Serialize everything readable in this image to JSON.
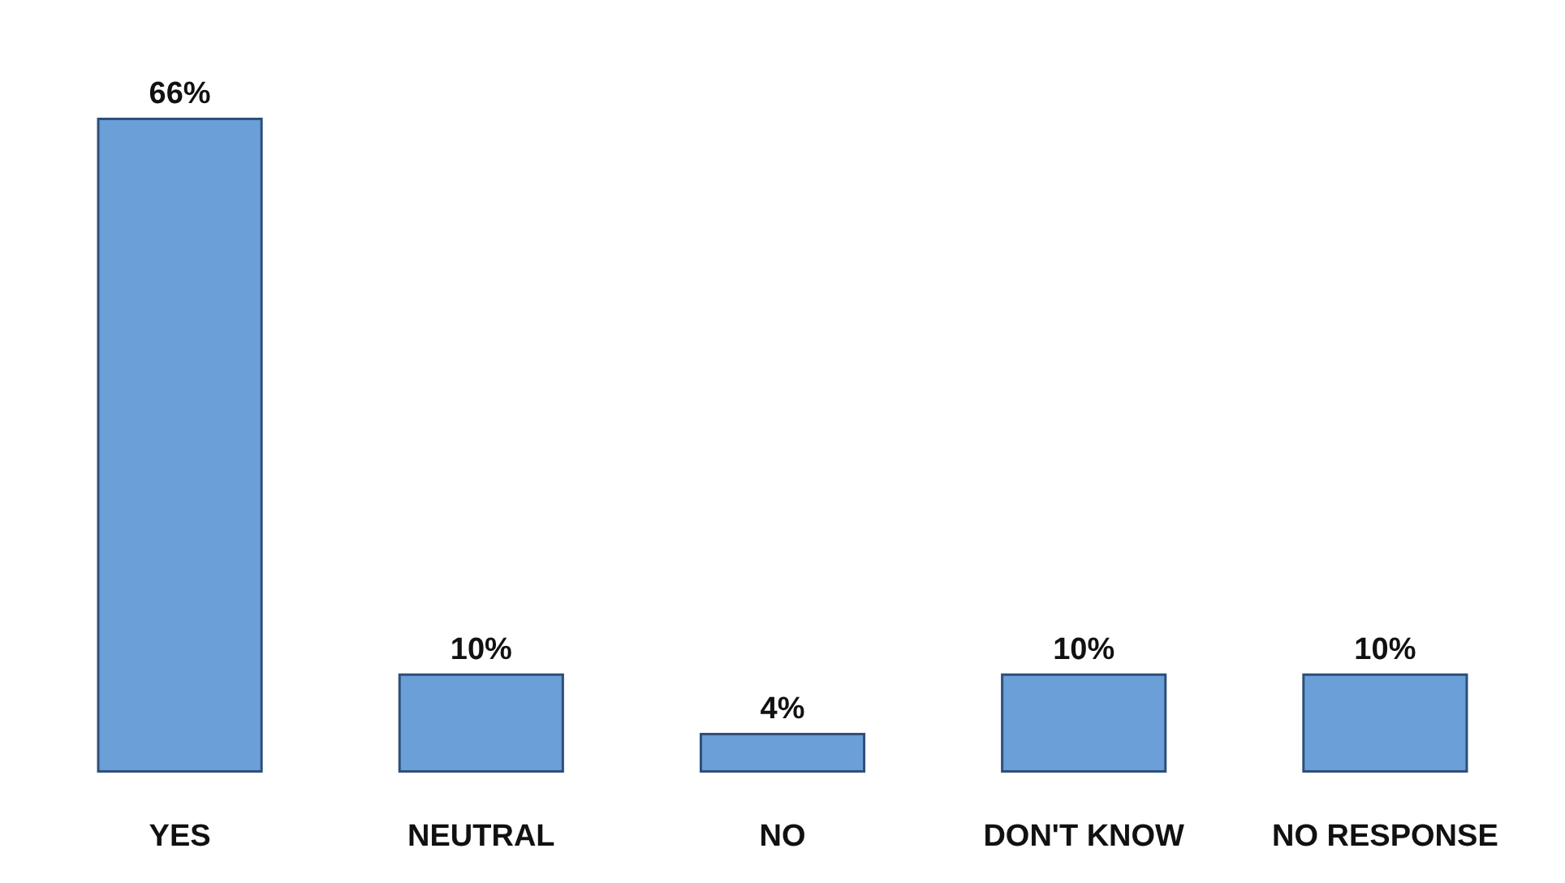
{
  "chart_data": {
    "type": "bar",
    "categories": [
      "YES",
      "NEUTRAL",
      "NO",
      "DON'T KNOW",
      "NO RESPONSE"
    ],
    "values": [
      66,
      10,
      4,
      10,
      10
    ],
    "value_labels": [
      "66%",
      "10%",
      "4%",
      "10%",
      "10%"
    ],
    "color": "#6a9fd8"
  }
}
